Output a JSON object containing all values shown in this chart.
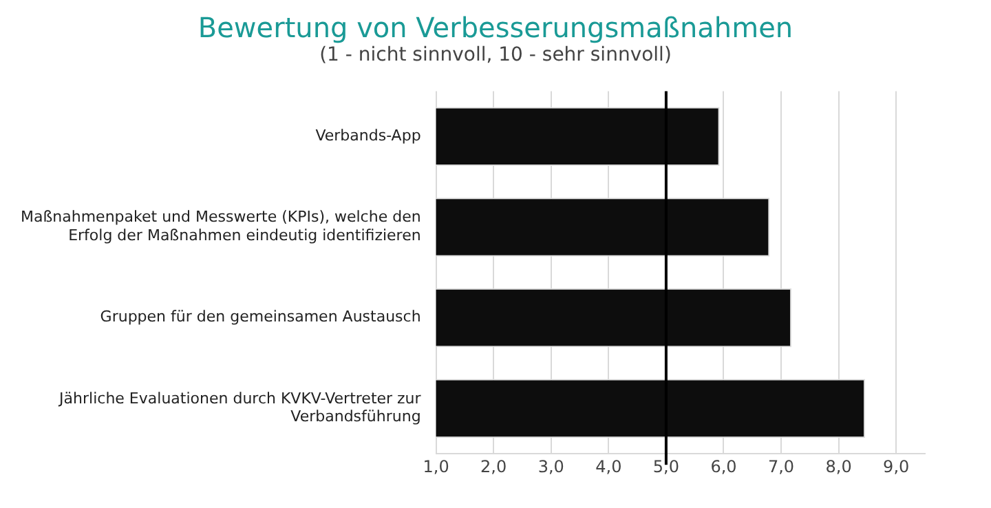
{
  "chart_data": {
    "type": "bar",
    "orientation": "horizontal",
    "title": "Bewertung von Verbesserungsmaßnahmen",
    "subtitle": "(1 - nicht sinnvoll, 10 - sehr sinnvoll)",
    "categories": [
      "Verbands-App",
      "Maßnahmenpaket und Messwerte (KPIs), welche den Erfolg der Maßnahmen eindeutig identifizieren",
      "Gruppen für den gemeinsamen Austausch",
      "Jährliche Evaluationen durch KVKV-Vertreter zur Verbandsführung"
    ],
    "values": [
      5.93,
      6.8,
      7.18,
      8.46
    ],
    "color": "#0d0d0d",
    "xlim": [
      1,
      9.5
    ],
    "xticks": [
      {
        "value": 1,
        "label": "1,0"
      },
      {
        "value": 2,
        "label": "2,0"
      },
      {
        "value": 3,
        "label": "3,0"
      },
      {
        "value": 4,
        "label": "4,0"
      },
      {
        "value": 5,
        "label": "5,0"
      },
      {
        "value": 6,
        "label": "6,0"
      },
      {
        "value": 7,
        "label": "7,0"
      },
      {
        "value": 8,
        "label": "8,0"
      },
      {
        "value": 9,
        "label": "9,0"
      }
    ],
    "ref_lines": [
      {
        "axis": "x",
        "value": 5,
        "color": "#000000"
      }
    ],
    "grid": "x",
    "legend": false
  }
}
